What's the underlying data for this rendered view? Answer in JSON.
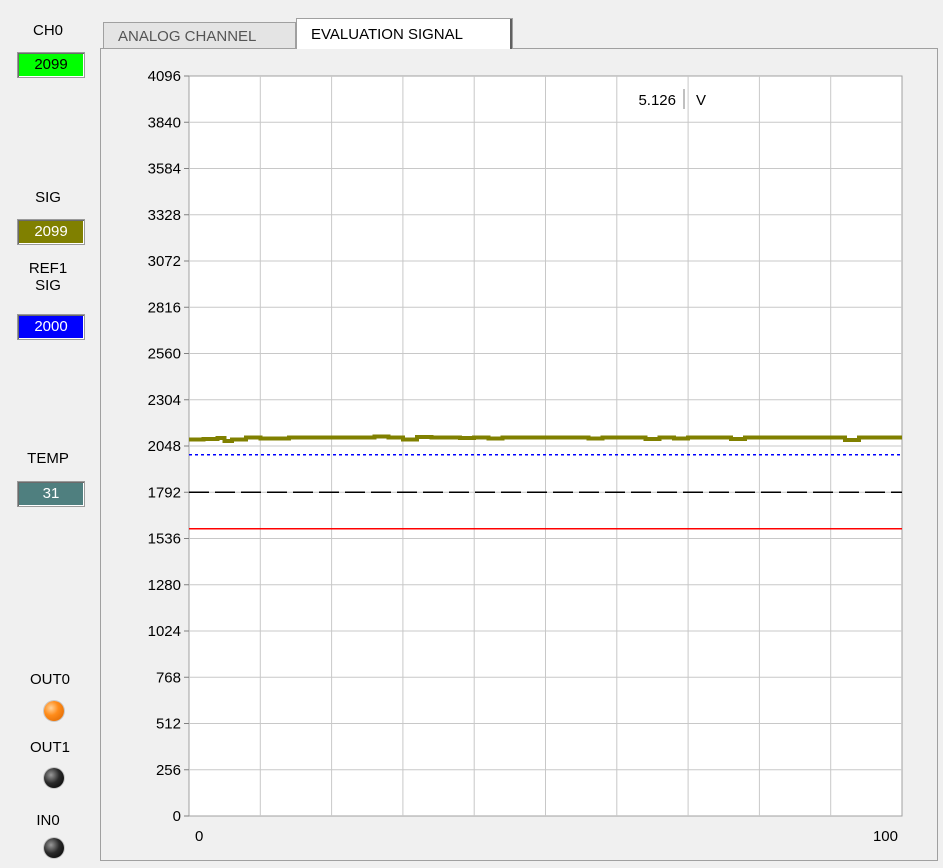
{
  "left_panel": {
    "ch0_label": "CH0",
    "ch0_value": "2099",
    "sig_label": "SIG",
    "sig_value": "2099",
    "ref_label_line1": "REF1",
    "ref_label_line2": "SIG",
    "ref_value": "2000",
    "temp_label": "TEMP",
    "temp_value": "31",
    "out0_label": "OUT0",
    "out1_label": "OUT1",
    "in0_label": "IN0",
    "colors": {
      "ch0_bg": "#00ff00",
      "sig_bg": "#808000",
      "ref_bg": "#0000ff",
      "temp_bg": "#4f7f7f",
      "out0_led": "#ff8c1a",
      "out1_led": "#000000",
      "in0_led": "#000000"
    }
  },
  "tabs": [
    {
      "label": "ANALOG CHANNEL",
      "active": false
    },
    {
      "label": "EVALUATION SIGNAL",
      "active": true
    }
  ],
  "readout": {
    "value": "5.126",
    "unit": "V"
  },
  "chart_data": {
    "type": "line",
    "title": "",
    "xlabel": "",
    "ylabel": "",
    "xlim": [
      0,
      100
    ],
    "ylim": [
      0,
      4096
    ],
    "x_tick_labels": [
      "0",
      "100"
    ],
    "y_ticks": [
      0,
      256,
      512,
      768,
      1024,
      1280,
      1536,
      1792,
      2048,
      2304,
      2560,
      2816,
      3072,
      3328,
      3584,
      3840,
      4096
    ],
    "grid": true,
    "series": [
      {
        "color": "#808000",
        "style": "solid-thick",
        "x": [
          0,
          2,
          4,
          5,
          6,
          8,
          10,
          12,
          14,
          16,
          18,
          20,
          22,
          24,
          26,
          28,
          30,
          32,
          34,
          36,
          38,
          40,
          42,
          44,
          46,
          48,
          50,
          52,
          54,
          56,
          58,
          60,
          62,
          64,
          66,
          68,
          70,
          72,
          74,
          76,
          78,
          80,
          82,
          84,
          86,
          88,
          90,
          92,
          94,
          96,
          98,
          100
        ],
        "y": [
          2085,
          2088,
          2092,
          2075,
          2085,
          2095,
          2090,
          2090,
          2096,
          2096,
          2096,
          2096,
          2096,
          2096,
          2101,
          2094,
          2083,
          2098,
          2094,
          2096,
          2093,
          2096,
          2090,
          2096,
          2096,
          2096,
          2096,
          2096,
          2094,
          2090,
          2096,
          2094,
          2096,
          2088,
          2096,
          2090,
          2096,
          2096,
          2096,
          2088,
          2096,
          2096,
          2096,
          2096,
          2096,
          2096,
          2094,
          2080,
          2094,
          2094,
          2094,
          2094
        ]
      },
      {
        "color": "#0000ff",
        "style": "dotted",
        "x": [
          0,
          100
        ],
        "y": [
          2000,
          2000
        ]
      },
      {
        "color": "#000000",
        "style": "dashed",
        "x": [
          0,
          100
        ],
        "y": [
          1792,
          1792
        ]
      },
      {
        "color": "#ff0000",
        "style": "solid",
        "x": [
          0,
          100
        ],
        "y": [
          1590,
          1590
        ]
      }
    ]
  }
}
